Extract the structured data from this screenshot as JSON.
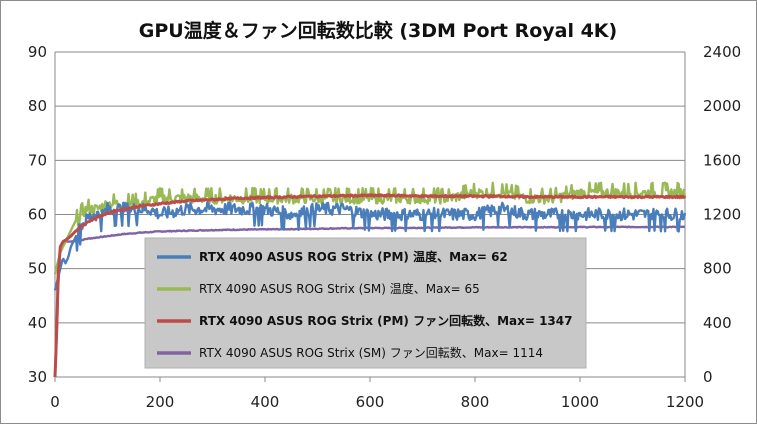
{
  "chart_data": {
    "type": "line",
    "title": "GPU温度＆ファン回転数比較 (3DM Port Royal 4K)",
    "xlabel": "",
    "ylabel": "",
    "y2label": "",
    "xlim": [
      0,
      1200
    ],
    "ylim": [
      30,
      90
    ],
    "y2lim": [
      0,
      2400
    ],
    "x_ticks": [
      "0",
      "200",
      "400",
      "600",
      "800",
      "1000",
      "1200"
    ],
    "y_ticks": [
      "30",
      "40",
      "50",
      "60",
      "70",
      "80",
      "90"
    ],
    "y2_ticks": [
      "0",
      "400",
      "800",
      "1200",
      "1600",
      "2000",
      "2400"
    ],
    "grid": true,
    "legend_position": "center",
    "series": [
      {
        "name": "RTX 4090 ASUS ROG Strix (PM) 温度、Max= 62",
        "axis": "left",
        "color": "#4a7ebb",
        "points": [
          [
            0,
            46
          ],
          [
            5,
            48
          ],
          [
            10,
            50
          ],
          [
            15,
            52
          ],
          [
            20,
            51
          ],
          [
            25,
            52
          ],
          [
            30,
            54
          ],
          [
            35,
            55
          ],
          [
            40,
            56
          ],
          [
            45,
            57
          ],
          [
            50,
            58
          ],
          [
            60,
            59
          ],
          [
            70,
            60
          ],
          [
            80,
            60
          ],
          [
            90,
            60
          ],
          [
            100,
            61
          ],
          [
            120,
            61
          ],
          [
            140,
            61
          ],
          [
            160,
            61
          ],
          [
            180,
            61
          ],
          [
            200,
            60
          ],
          [
            250,
            61
          ],
          [
            300,
            61
          ],
          [
            350,
            61
          ],
          [
            400,
            61
          ],
          [
            450,
            60
          ],
          [
            500,
            61
          ],
          [
            550,
            61
          ],
          [
            600,
            60
          ],
          [
            650,
            60
          ],
          [
            700,
            60
          ],
          [
            750,
            60
          ],
          [
            800,
            60
          ],
          [
            850,
            61
          ],
          [
            900,
            60
          ],
          [
            950,
            60
          ],
          [
            1000,
            60
          ],
          [
            1050,
            60
          ],
          [
            1100,
            60
          ],
          [
            1150,
            60
          ],
          [
            1200,
            60
          ]
        ],
        "noise": 1.2
      },
      {
        "name": "RTX 4090 ASUS ROG Strix (SM) 温度、Max= 65",
        "axis": "left",
        "color": "#98b954",
        "points": [
          [
            0,
            49
          ],
          [
            5,
            51
          ],
          [
            10,
            53
          ],
          [
            15,
            54
          ],
          [
            20,
            55
          ],
          [
            25,
            56
          ],
          [
            30,
            57
          ],
          [
            35,
            58
          ],
          [
            40,
            59
          ],
          [
            45,
            59
          ],
          [
            50,
            60
          ],
          [
            60,
            61
          ],
          [
            70,
            61
          ],
          [
            80,
            61
          ],
          [
            100,
            62
          ],
          [
            130,
            62
          ],
          [
            160,
            62
          ],
          [
            200,
            63
          ],
          [
            250,
            63
          ],
          [
            300,
            63
          ],
          [
            350,
            63
          ],
          [
            400,
            63
          ],
          [
            450,
            63
          ],
          [
            500,
            63
          ],
          [
            550,
            63
          ],
          [
            600,
            63
          ],
          [
            650,
            63
          ],
          [
            700,
            63
          ],
          [
            750,
            63
          ],
          [
            800,
            64
          ],
          [
            850,
            64
          ],
          [
            900,
            63
          ],
          [
            950,
            63
          ],
          [
            1000,
            64
          ],
          [
            1050,
            64
          ],
          [
            1100,
            64
          ],
          [
            1150,
            64
          ],
          [
            1200,
            64
          ]
        ],
        "noise": 1.0
      },
      {
        "name": "RTX 4090 ASUS ROG Strix (PM) ファン回転数、Max= 1347",
        "axis": "right",
        "color": "#be4b48",
        "points": [
          [
            0,
            0
          ],
          [
            3,
            300
          ],
          [
            6,
            750
          ],
          [
            10,
            960
          ],
          [
            15,
            1000
          ],
          [
            20,
            1010
          ],
          [
            30,
            1040
          ],
          [
            40,
            1080
          ],
          [
            50,
            1110
          ],
          [
            60,
            1140
          ],
          [
            80,
            1180
          ],
          [
            100,
            1210
          ],
          [
            130,
            1240
          ],
          [
            160,
            1260
          ],
          [
            200,
            1280
          ],
          [
            250,
            1300
          ],
          [
            300,
            1310
          ],
          [
            350,
            1320
          ],
          [
            400,
            1325
          ],
          [
            450,
            1330
          ],
          [
            500,
            1335
          ],
          [
            550,
            1338
          ],
          [
            600,
            1340
          ],
          [
            650,
            1340
          ],
          [
            700,
            1335
          ],
          [
            750,
            1335
          ],
          [
            800,
            1335
          ],
          [
            850,
            1335
          ],
          [
            900,
            1330
          ],
          [
            950,
            1330
          ],
          [
            1000,
            1330
          ],
          [
            1050,
            1330
          ],
          [
            1100,
            1330
          ],
          [
            1150,
            1330
          ],
          [
            1200,
            1330
          ]
        ],
        "noise": 6
      },
      {
        "name": "RTX 4090 ASUS ROG Strix (SM) ファン回転数、Max= 1114",
        "axis": "right",
        "color": "#8064a2",
        "points": [
          [
            0,
            0
          ],
          [
            3,
            250
          ],
          [
            6,
            650
          ],
          [
            10,
            960
          ],
          [
            15,
            990
          ],
          [
            20,
            1000
          ],
          [
            30,
            1000
          ],
          [
            40,
            1005
          ],
          [
            50,
            1010
          ],
          [
            60,
            1020
          ],
          [
            80,
            1030
          ],
          [
            100,
            1040
          ],
          [
            130,
            1055
          ],
          [
            160,
            1065
          ],
          [
            200,
            1075
          ],
          [
            250,
            1080
          ],
          [
            300,
            1085
          ],
          [
            350,
            1088
          ],
          [
            400,
            1090
          ],
          [
            450,
            1092
          ],
          [
            500,
            1095
          ],
          [
            550,
            1098
          ],
          [
            600,
            1100
          ],
          [
            650,
            1100
          ],
          [
            700,
            1102
          ],
          [
            750,
            1104
          ],
          [
            800,
            1105
          ],
          [
            850,
            1106
          ],
          [
            900,
            1106
          ],
          [
            950,
            1106
          ],
          [
            1000,
            1107
          ],
          [
            1050,
            1108
          ],
          [
            1100,
            1108
          ],
          [
            1150,
            1108
          ],
          [
            1200,
            1108
          ]
        ],
        "noise": 3
      }
    ]
  }
}
